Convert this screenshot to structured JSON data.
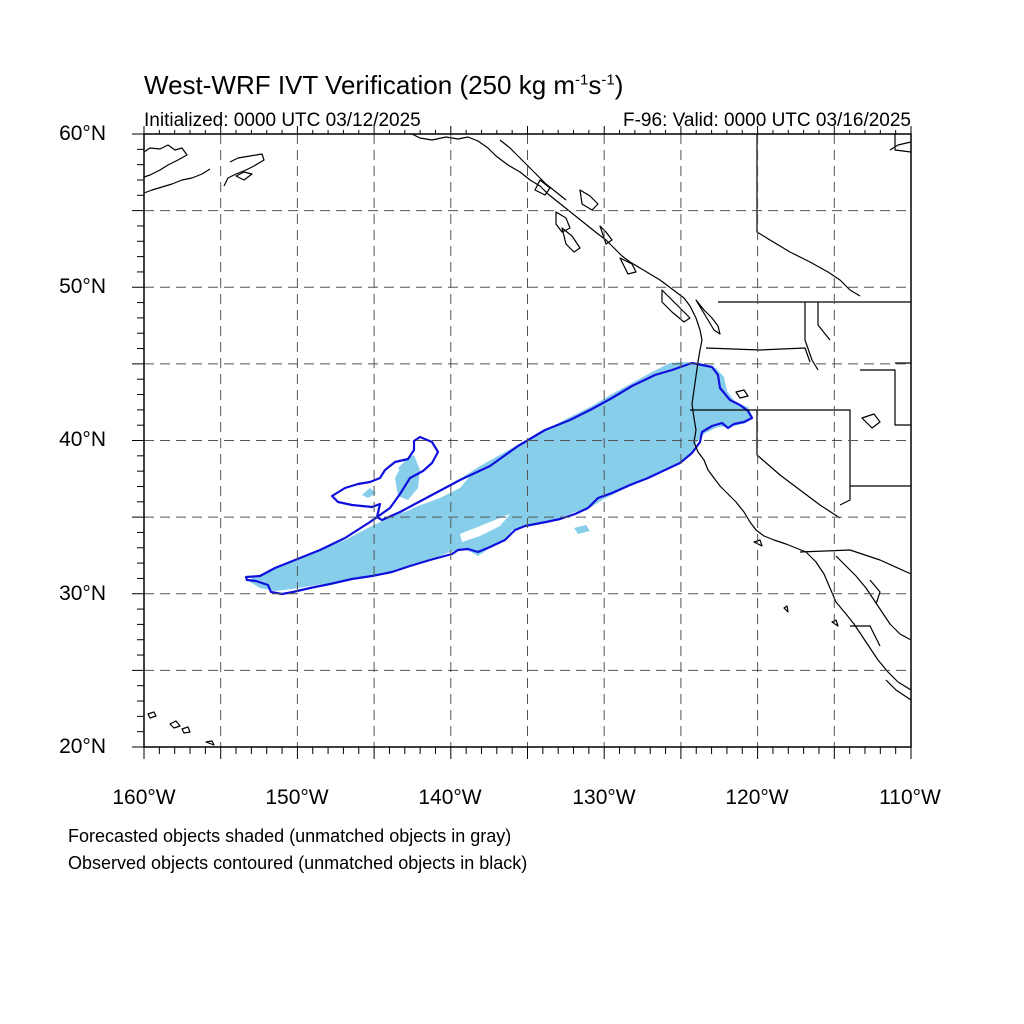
{
  "title": {
    "main": "West-WRF IVT Verification (250 kg m",
    "exp1": "-1",
    "mid": "s",
    "exp2": "-1",
    "close": ")"
  },
  "subtitle_left": "Initialized: 0000 UTC 03/12/2025",
  "subtitle_right": "F-96: Valid: 0000 UTC 03/16/2025",
  "map": {
    "lon_range": [
      -160,
      -110
    ],
    "lat_range": [
      20,
      60
    ],
    "gridlines": "dashed",
    "grid_lon_step": 5,
    "grid_lat_step": 5
  },
  "axis_labels": {
    "lat": [
      "60°N",
      "50°N",
      "40°N",
      "30°N",
      "20°N"
    ],
    "lon": [
      "160°W",
      "150°W",
      "140°W",
      "130°W",
      "120°W",
      "110°W"
    ]
  },
  "legend_notes": [
    "Forecasted objects shaded (unmatched objects in gray)",
    "Observed objects contoured (unmatched objects in black)"
  ],
  "colors": {
    "forecast_fill": "#87CEEB",
    "observed_contour": "#1010DD",
    "coastline": "#000000",
    "grid": "#555555"
  }
}
